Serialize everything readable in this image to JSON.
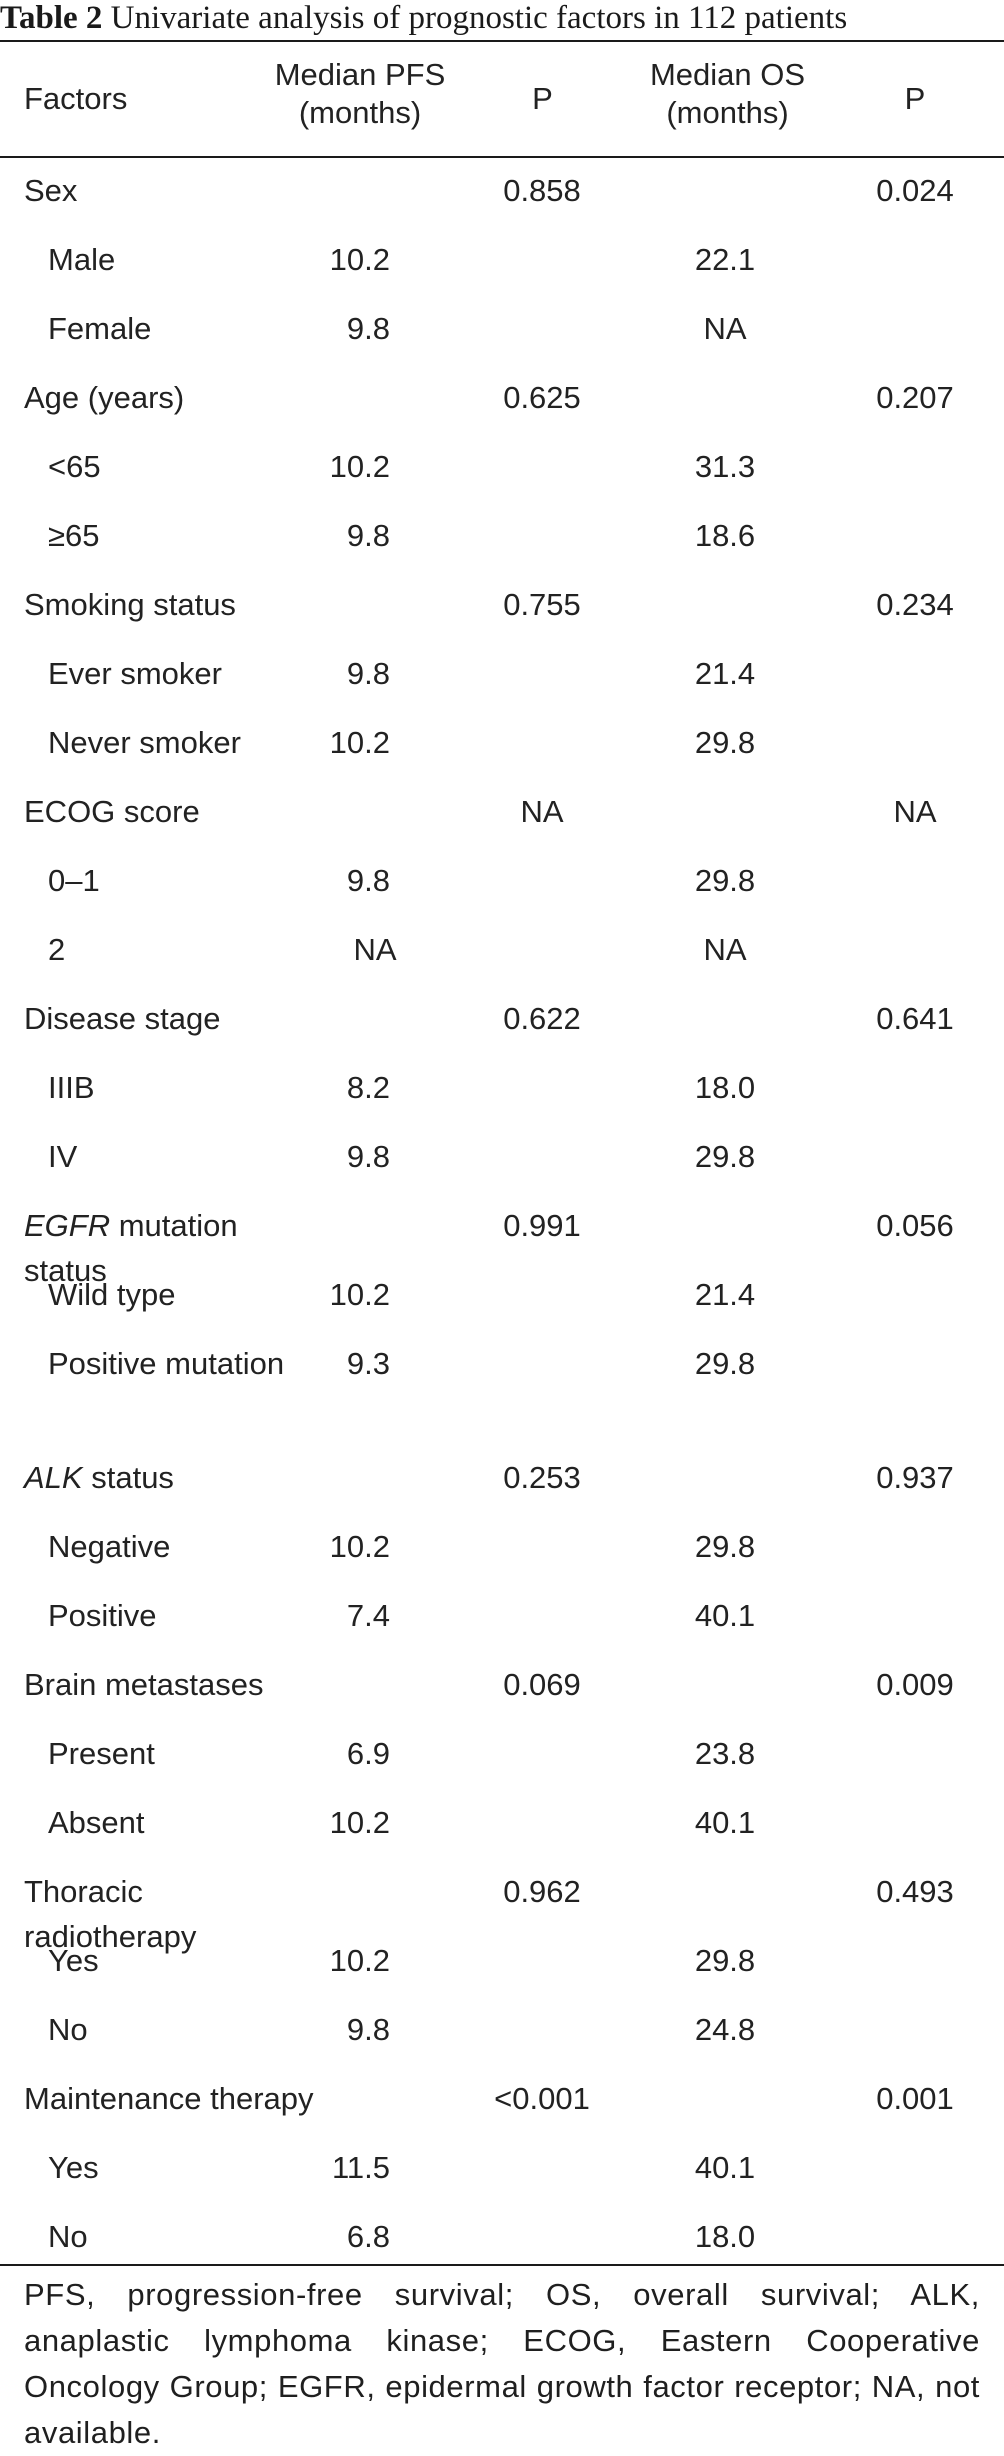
{
  "caption": {
    "label": "Table 2",
    "text": "Univariate analysis of prognostic factors in 112 patients"
  },
  "headers": {
    "factors": "Factors",
    "pfs_line1": "Median PFS",
    "pfs_line2": "(months)",
    "p1": "P",
    "os_line1": "Median OS",
    "os_line2": "(months)",
    "p2": "P"
  },
  "rows": [
    {
      "factor": "Sex",
      "pfs": "",
      "p1": "0.858",
      "os": "",
      "p2": "0.024"
    },
    {
      "factor": "Male",
      "pfs": "10.2",
      "p1": "",
      "os": "22.1",
      "p2": ""
    },
    {
      "factor": "Female",
      "pfs": "9.8",
      "p1": "",
      "os": "NA",
      "p2": ""
    },
    {
      "factor": "Age (years)",
      "pfs": "",
      "p1": "0.625",
      "os": "",
      "p2": "0.207"
    },
    {
      "factor": "<65",
      "pfs": "10.2",
      "p1": "",
      "os": "31.3",
      "p2": ""
    },
    {
      "factor": "≥65",
      "pfs": "9.8",
      "p1": "",
      "os": "18.6",
      "p2": ""
    },
    {
      "factor": "Smoking status",
      "pfs": "",
      "p1": "0.755",
      "os": "",
      "p2": "0.234"
    },
    {
      "factor": "Ever smoker",
      "pfs": "9.8",
      "p1": "",
      "os": "21.4",
      "p2": ""
    },
    {
      "factor": "Never smoker",
      "pfs": "10.2",
      "p1": "",
      "os": "29.8",
      "p2": ""
    },
    {
      "factor": "ECOG score",
      "pfs": "",
      "p1": "NA",
      "os": "",
      "p2": "NA"
    },
    {
      "factor": "0–1",
      "pfs": "9.8",
      "p1": "",
      "os": "29.8",
      "p2": ""
    },
    {
      "factor": "2",
      "pfs": "NA",
      "p1": "",
      "os": "NA",
      "p2": ""
    },
    {
      "factor": "Disease stage",
      "pfs": "",
      "p1": "0.622",
      "os": "",
      "p2": "0.641"
    },
    {
      "factor": "IIIB",
      "pfs": "8.2",
      "p1": "",
      "os": "18.0",
      "p2": ""
    },
    {
      "factor": "IV",
      "pfs": "9.8",
      "p1": "",
      "os": "29.8",
      "p2": ""
    },
    {
      "factor_em": "EGFR",
      "factor": " mutation status",
      "pfs": "",
      "p1": "0.991",
      "os": "",
      "p2": "0.056"
    },
    {
      "factor": "Wild type",
      "pfs": "10.2",
      "p1": "",
      "os": "21.4",
      "p2": ""
    },
    {
      "factor": "Positive mutation",
      "pfs": "9.3",
      "p1": "",
      "os": "29.8",
      "p2": ""
    },
    {
      "factor_em": "ALK",
      "factor": " status",
      "pfs": "",
      "p1": "0.253",
      "os": "",
      "p2": "0.937"
    },
    {
      "factor": "Negative",
      "pfs": "10.2",
      "p1": "",
      "os": "29.8",
      "p2": ""
    },
    {
      "factor": "Positive",
      "pfs": "7.4",
      "p1": "",
      "os": "40.1",
      "p2": ""
    },
    {
      "factor": "Brain metastases",
      "pfs": "",
      "p1": "0.069",
      "os": "",
      "p2": "0.009"
    },
    {
      "factor": "Present",
      "pfs": "6.9",
      "p1": "",
      "os": "23.8",
      "p2": ""
    },
    {
      "factor": "Absent",
      "pfs": "10.2",
      "p1": "",
      "os": "40.1",
      "p2": ""
    },
    {
      "factor": "Thoracic radiotherapy",
      "pfs": "",
      "p1": "0.962",
      "os": "",
      "p2": "0.493"
    },
    {
      "factor": "Yes",
      "pfs": "10.2",
      "p1": "",
      "os": "29.8",
      "p2": ""
    },
    {
      "factor": "No",
      "pfs": "9.8",
      "p1": "",
      "os": "24.8",
      "p2": ""
    },
    {
      "factor": "Maintenance therapy",
      "pfs": "",
      "p1": "<0.001",
      "os": "",
      "p2": "0.001"
    },
    {
      "factor": "Yes",
      "pfs": "11.5",
      "p1": "",
      "os": "40.1",
      "p2": ""
    },
    {
      "factor": "No",
      "pfs": "6.8",
      "p1": "",
      "os": "18.0",
      "p2": ""
    }
  ],
  "footnote": "PFS, progression-free survival; OS, overall survival; ALK, anaplastic lymphoma kinase; ECOG, Eastern Cooperative Oncology Group; EGFR, epidermal growth factor receptor; NA, not available."
}
